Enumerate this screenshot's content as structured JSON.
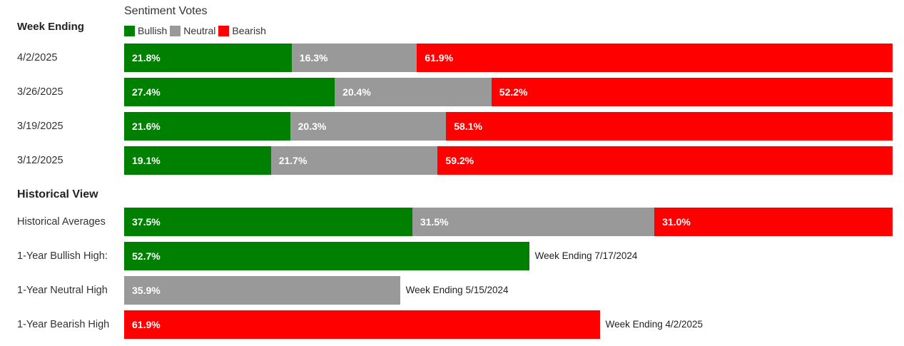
{
  "colors": {
    "bullish": "#008000",
    "neutral": "#999999",
    "bearish": "#ff0000"
  },
  "chart_data": {
    "type": "bar",
    "stacked": true,
    "orientation": "horizontal",
    "title": "Sentiment Votes",
    "legend": [
      "Bullish",
      "Neutral",
      "Bearish"
    ],
    "legend_position": "top-left",
    "weekly_header": "Week Ending",
    "weekly": [
      {
        "label": "4/2/2025",
        "bullish": 21.8,
        "neutral": 16.3,
        "bearish": 61.9
      },
      {
        "label": "3/26/2025",
        "bullish": 27.4,
        "neutral": 20.4,
        "bearish": 52.2
      },
      {
        "label": "3/19/2025",
        "bullish": 21.6,
        "neutral": 20.3,
        "bearish": 58.1
      },
      {
        "label": "3/12/2025",
        "bullish": 19.1,
        "neutral": 21.7,
        "bearish": 59.2
      }
    ],
    "historical_header": "Historical View",
    "historical_average": {
      "label": "Historical Averages",
      "bullish": 37.5,
      "neutral": 31.5,
      "bearish": 31.0
    },
    "highs": [
      {
        "label": "1-Year Bullish High:",
        "type": "bullish",
        "value": 52.7,
        "note": "Week Ending 7/17/2024"
      },
      {
        "label": "1-Year Neutral High",
        "type": "neutral",
        "value": 35.9,
        "note": "Week Ending 5/15/2024"
      },
      {
        "label": "1-Year Bearish High",
        "type": "bearish",
        "value": 61.9,
        "note": "Week Ending 4/2/2025"
      }
    ]
  }
}
